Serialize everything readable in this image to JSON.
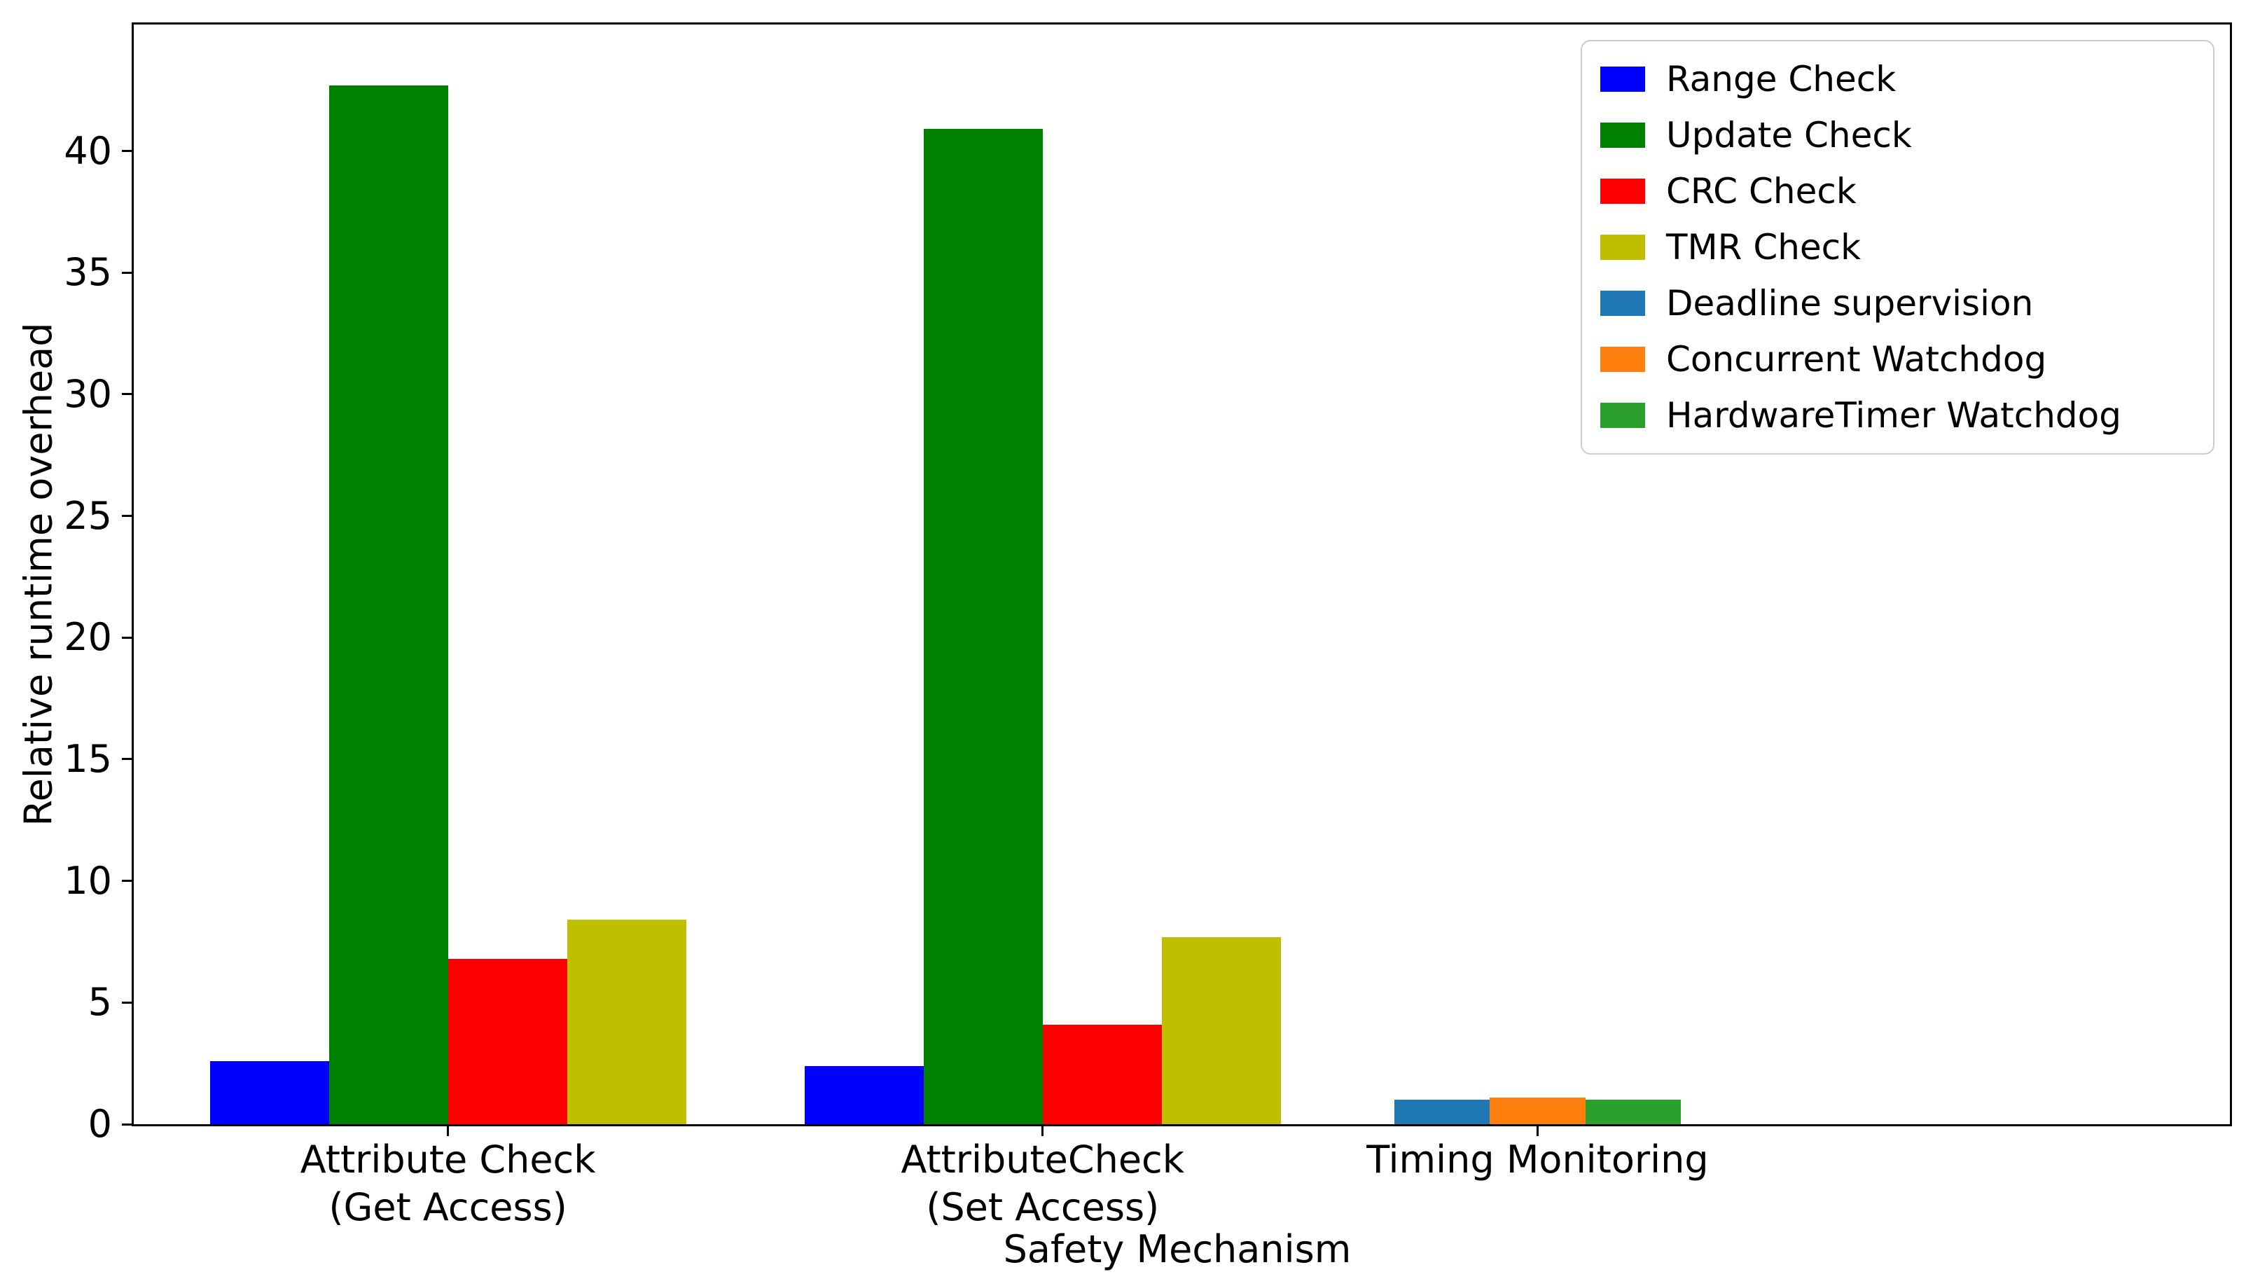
{
  "figure": {
    "background": "#ffffff"
  },
  "chart_data": {
    "type": "bar",
    "title": "",
    "xlabel": "Safety Mechanism",
    "ylabel": "Relative runtime overhead",
    "ylim": [
      0,
      45.2
    ],
    "yticks": [
      0,
      5,
      10,
      15,
      20,
      25,
      30,
      35,
      40
    ],
    "grid": false,
    "legend_position": "upper right",
    "categories": [
      "Attribute Check\n(Get Access)",
      "AttributeCheck\n(Set Access)",
      "Timing Monitoring"
    ],
    "series": [
      {
        "name": "Range Check",
        "color": "#0000ff",
        "values": [
          2.6,
          2.4,
          null
        ]
      },
      {
        "name": "Update Check",
        "color": "#008000",
        "values": [
          42.7,
          40.9,
          null
        ]
      },
      {
        "name": "CRC Check",
        "color": "#ff0000",
        "values": [
          6.8,
          4.1,
          null
        ]
      },
      {
        "name": "TMR Check",
        "color": "#bfbf00",
        "values": [
          8.4,
          7.7,
          null
        ]
      },
      {
        "name": "Deadline supervision",
        "color": "#1f77b4",
        "values": [
          null,
          null,
          1.0
        ]
      },
      {
        "name": "Concurrent Watchdog",
        "color": "#ff7f0e",
        "values": [
          null,
          null,
          1.1
        ]
      },
      {
        "name": "HardwareTimer Watchdog",
        "color": "#2ca02c",
        "values": [
          null,
          null,
          1.0
        ]
      }
    ],
    "layout": {
      "group_center_frac": [
        0.1499,
        0.4336,
        0.6697
      ],
      "bar_width_frac": [
        0.0568,
        0.0568,
        0.0456
      ]
    }
  }
}
